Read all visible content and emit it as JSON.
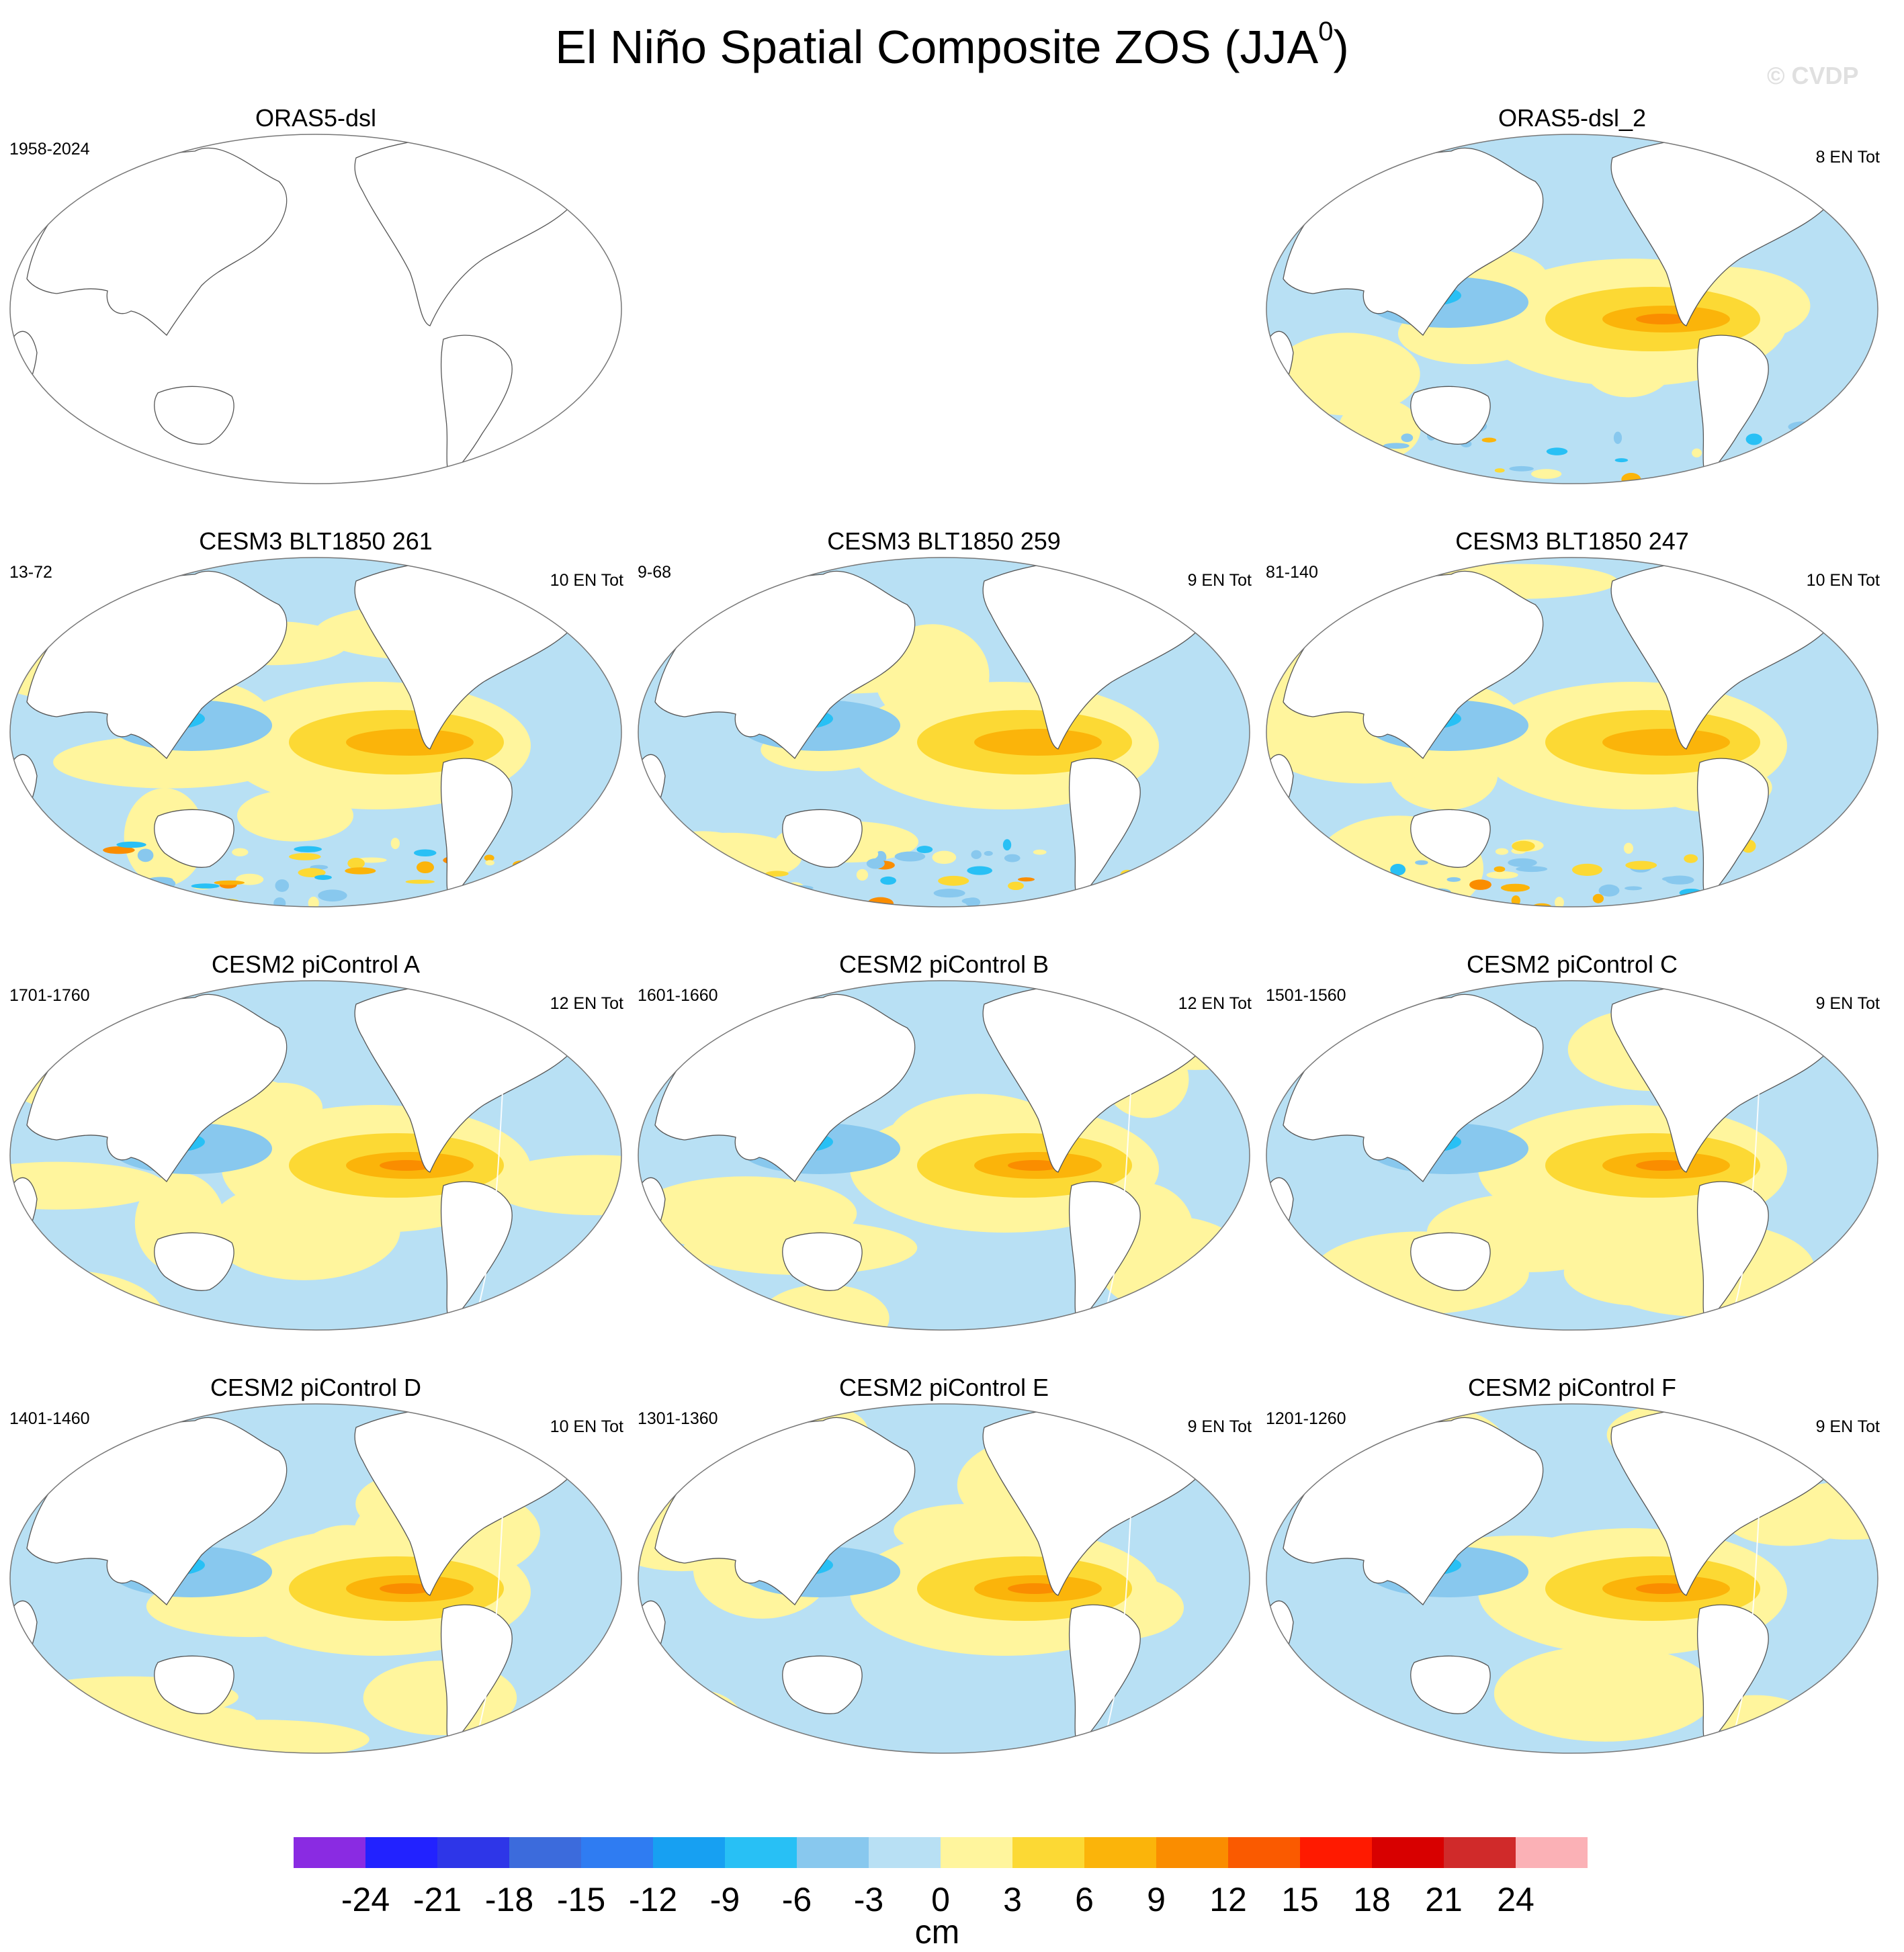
{
  "title": "El Niño Spatial Composite ZOS (JJA",
  "title_sup": "0",
  "title_close": ")",
  "copyright": "© CVDP",
  "panels": [
    {
      "title": "ORAS5-dsl",
      "years": "1958-2024",
      "count": "",
      "empty": true,
      "pattern": "none"
    },
    {
      "title": "ORAS5-dsl_2",
      "years": "",
      "count": "8 EN Tot",
      "empty": false,
      "pattern": "obs"
    },
    {
      "title": "CESM3 BLT1850 261",
      "years": "13-72",
      "count": "10 EN Tot",
      "empty": false,
      "pattern": "noisy"
    },
    {
      "title": "CESM3 BLT1850 259",
      "years": "9-68",
      "count": "9 EN Tot",
      "empty": false,
      "pattern": "noisy"
    },
    {
      "title": "CESM3 BLT1850 247",
      "years": "81-140",
      "count": "10 EN Tot",
      "empty": false,
      "pattern": "noisy"
    },
    {
      "title": "CESM2 piControl A",
      "years": "1701-1760",
      "count": "12 EN Tot",
      "empty": false,
      "pattern": "smooth"
    },
    {
      "title": "CESM2 piControl B",
      "years": "1601-1660",
      "count": "12 EN Tot",
      "empty": false,
      "pattern": "smooth"
    },
    {
      "title": "CESM2 piControl C",
      "years": "1501-1560",
      "count": "9 EN Tot",
      "empty": false,
      "pattern": "smooth"
    },
    {
      "title": "CESM2 piControl D",
      "years": "1401-1460",
      "count": "10 EN Tot",
      "empty": false,
      "pattern": "smooth"
    },
    {
      "title": "CESM2 piControl E",
      "years": "1301-1360",
      "count": "9 EN Tot",
      "empty": false,
      "pattern": "smooth"
    },
    {
      "title": "CESM2 piControl F",
      "years": "1201-1260",
      "count": "9 EN Tot",
      "empty": false,
      "pattern": "smooth"
    }
  ],
  "colorbar": {
    "colors": [
      "#8a2be2",
      "#2222ff",
      "#2e36e8",
      "#3c6bdc",
      "#2f7cf2",
      "#17a0f2",
      "#28c0f5",
      "#88c8ee",
      "#b8e0f4",
      "#fff59d",
      "#fcd934",
      "#fbb40a",
      "#fa8d00",
      "#fa5a00",
      "#ff1a00",
      "#d80000",
      "#d02a2a",
      "#fbb1b6"
    ],
    "labels": [
      "-24",
      "-21",
      "-18",
      "-15",
      "-12",
      "-9",
      "-6",
      "-3",
      "0",
      "3",
      "6",
      "9",
      "12",
      "15",
      "18",
      "21",
      "24"
    ],
    "unit": "cm"
  }
}
